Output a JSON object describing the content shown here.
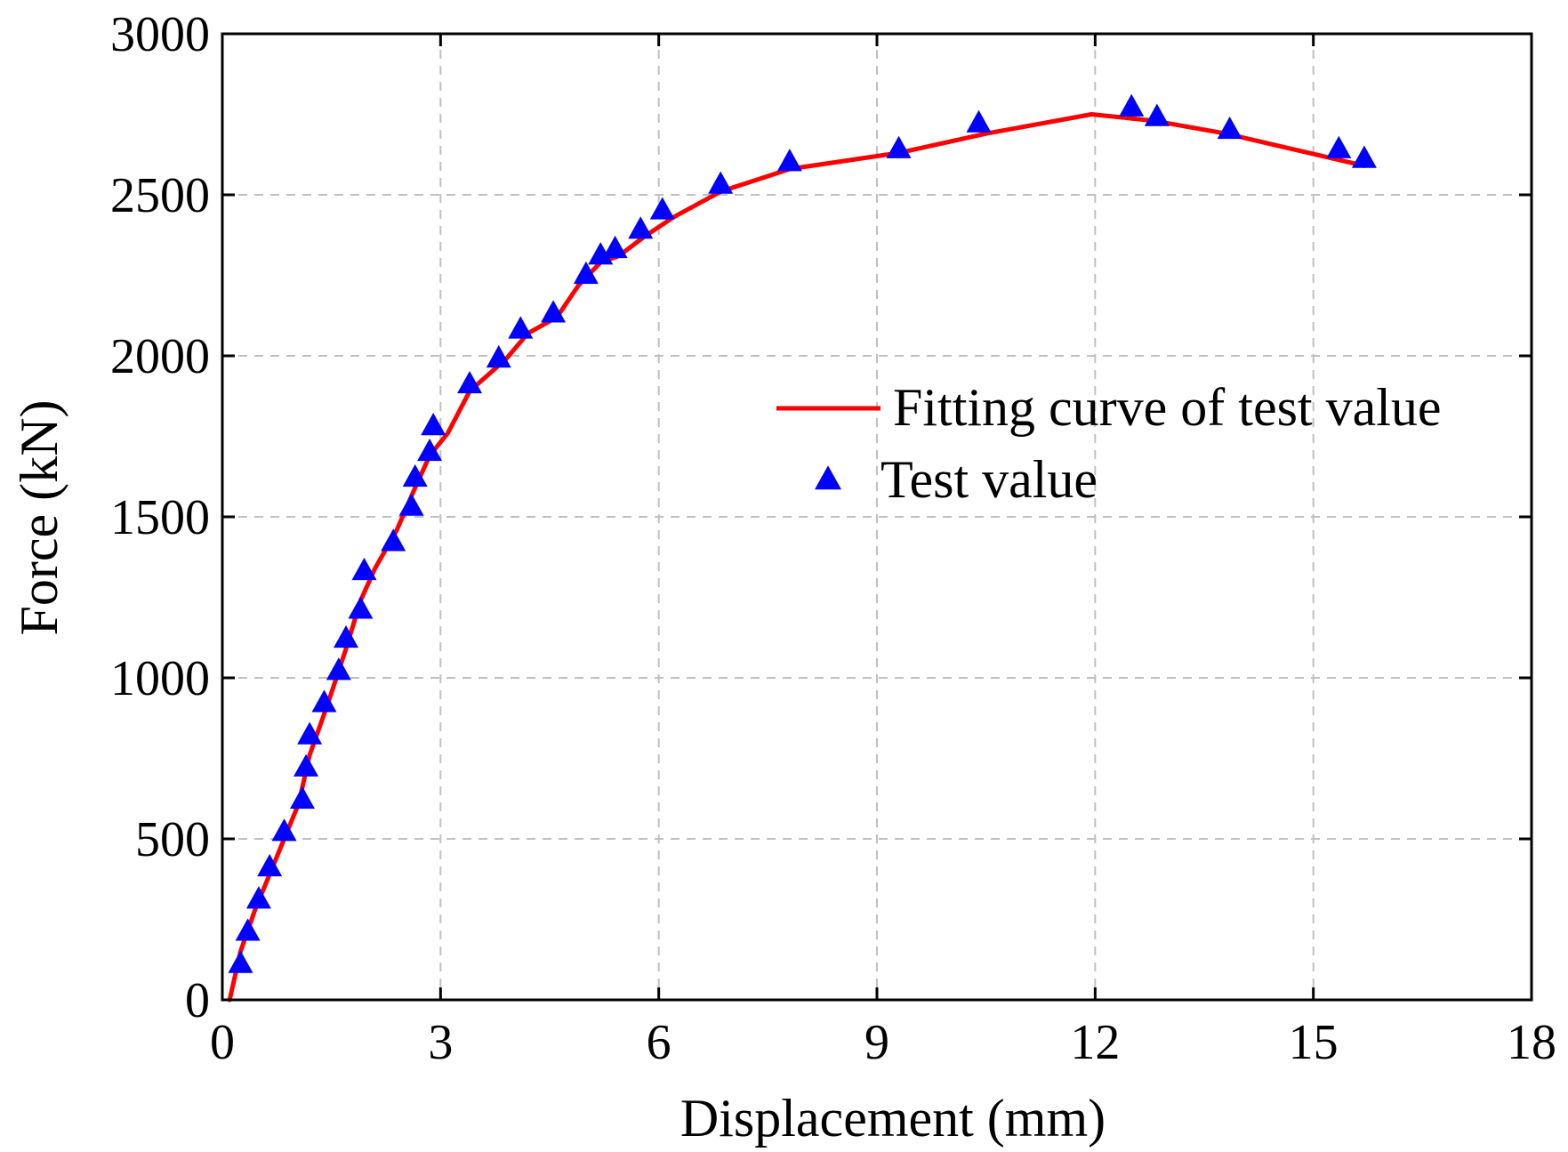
{
  "chart_data": {
    "type": "line",
    "title": "",
    "xlabel": "Displacement (mm)",
    "ylabel": "Force (kN)",
    "xlim": [
      0,
      18
    ],
    "ylim": [
      0,
      3000
    ],
    "xticks": [
      0,
      3,
      6,
      9,
      12,
      15,
      18
    ],
    "yticks": [
      0,
      500,
      1000,
      1500,
      2000,
      2500,
      3000
    ],
    "grid": true,
    "legend_position": "center-right",
    "series": [
      {
        "name": "Fitting curve of test value",
        "kind": "line",
        "color": "#ff0000",
        "x": [
          0.1,
          0.25,
          0.45,
          0.65,
          0.85,
          1.05,
          1.2,
          1.45,
          1.7,
          1.9,
          2.1,
          2.4,
          2.65,
          2.85,
          3.1,
          3.4,
          3.9,
          4.2,
          4.6,
          4.9,
          5.2,
          5.45,
          5.8,
          6.2,
          6.85,
          7.8,
          9.3,
          10.5,
          11.95,
          12.8,
          13.8,
          15.7
        ],
        "y": [
          0,
          150,
          280,
          390,
          500,
          610,
          760,
          920,
          1090,
          1240,
          1340,
          1460,
          1590,
          1690,
          1760,
          1890,
          1990,
          2070,
          2120,
          2220,
          2290,
          2310,
          2370,
          2430,
          2510,
          2580,
          2630,
          2690,
          2750,
          2730,
          2690,
          2590
        ]
      },
      {
        "name": "Test value",
        "kind": "scatter",
        "marker": "triangle-up",
        "color": "#0000ff",
        "x": [
          0.25,
          0.35,
          0.5,
          0.65,
          0.85,
          1.1,
          1.15,
          1.2,
          1.4,
          1.6,
          1.7,
          1.9,
          1.95,
          2.35,
          2.6,
          2.65,
          2.85,
          2.9,
          3.4,
          3.8,
          4.1,
          4.55,
          5.0,
          5.2,
          5.4,
          5.75,
          6.05,
          6.85,
          7.8,
          9.3,
          10.4,
          12.5,
          12.85,
          13.85,
          15.35,
          15.7
        ],
        "y": [
          110,
          210,
          310,
          410,
          520,
          620,
          720,
          820,
          920,
          1020,
          1120,
          1210,
          1330,
          1420,
          1530,
          1620,
          1700,
          1780,
          1910,
          1990,
          2080,
          2130,
          2250,
          2310,
          2330,
          2390,
          2450,
          2530,
          2600,
          2640,
          2720,
          2770,
          2740,
          2700,
          2640,
          2610
        ]
      }
    ]
  }
}
